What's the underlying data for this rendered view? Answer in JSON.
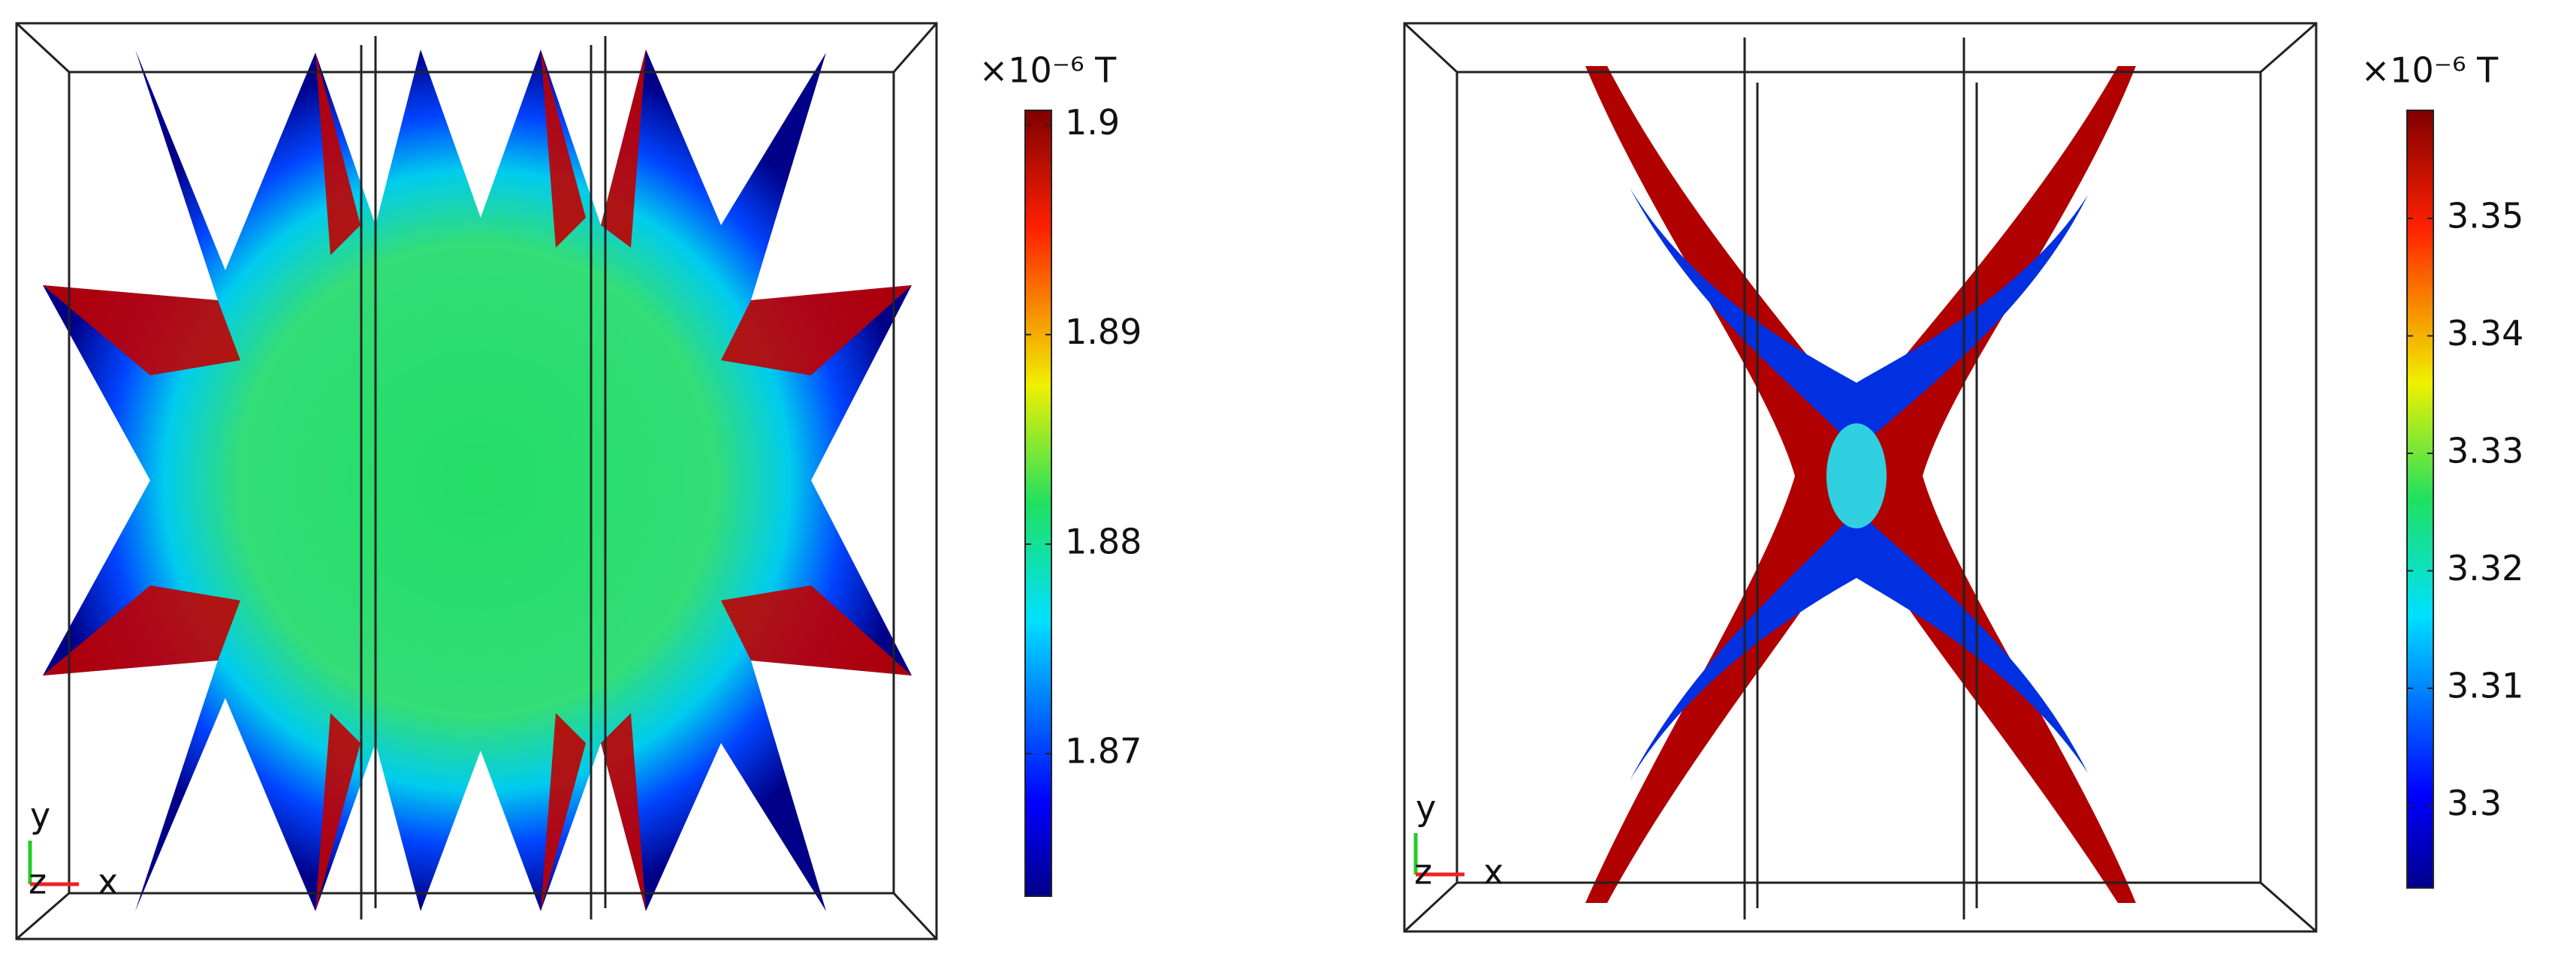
{
  "chart_data": [
    {
      "type": "colormap",
      "colorbar_label": "×10⁻⁶ T",
      "triad": [
        "y",
        "z",
        "x"
      ],
      "clim": [
        1.8632,
        1.9007
      ],
      "cticks": [
        1.87,
        1.88,
        1.89,
        1.9
      ]
    },
    {
      "type": "colormap",
      "colorbar_label": "×10⁻⁶ T",
      "triad": [
        "y",
        "z",
        "x"
      ],
      "clim": [
        3.293,
        3.3592
      ],
      "cticks": [
        3.3,
        3.31,
        3.32,
        3.33,
        3.34,
        3.35
      ]
    }
  ]
}
